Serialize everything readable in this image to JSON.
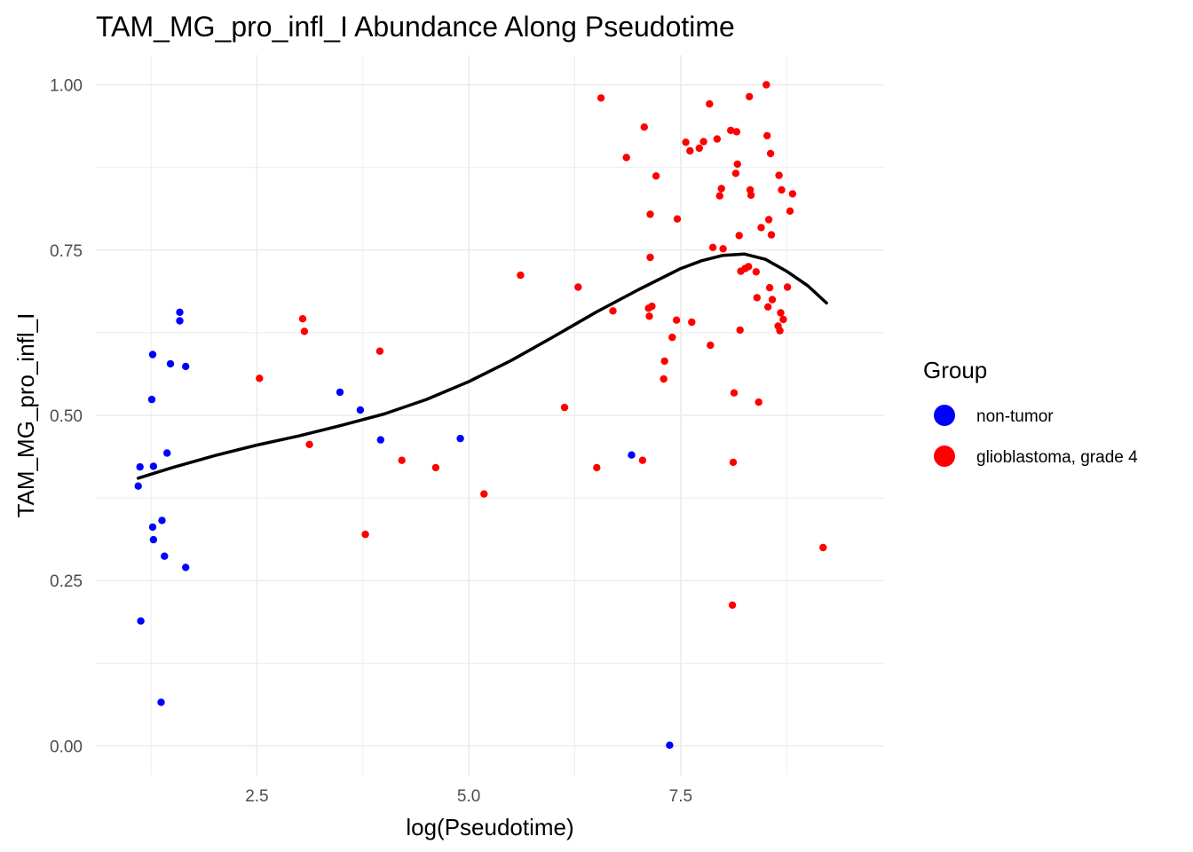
{
  "chart_data": {
    "type": "scatter",
    "title": "TAM_MG_pro_infl_I Abundance Along Pseudotime",
    "xlabel": "log(Pseudotime)",
    "ylabel": "TAM_MG_pro_infl_I",
    "xlim": [
      0.6,
      9.9
    ],
    "ylim": [
      -0.045,
      1.045
    ],
    "x_ticks": [
      2.5,
      5.0,
      7.5
    ],
    "x_tick_labels": [
      "2.5",
      "5.0",
      "7.5"
    ],
    "y_ticks": [
      0.0,
      0.25,
      0.5,
      0.75,
      1.0
    ],
    "y_tick_labels": [
      "0.00",
      "0.25",
      "0.50",
      "0.75",
      "1.00"
    ],
    "grid": true,
    "legend": {
      "title": "Group",
      "position": "right"
    },
    "series": [
      {
        "name": "non-tumor",
        "color": "#0000ff",
        "points": [
          [
            1.12,
            0.422
          ],
          [
            1.1,
            0.393
          ],
          [
            1.27,
            0.592
          ],
          [
            1.26,
            0.524
          ],
          [
            1.28,
            0.423
          ],
          [
            1.27,
            0.331
          ],
          [
            1.28,
            0.312
          ],
          [
            1.38,
            0.341
          ],
          [
            1.44,
            0.443
          ],
          [
            1.41,
            0.287
          ],
          [
            1.48,
            0.578
          ],
          [
            1.59,
            0.656
          ],
          [
            1.59,
            0.643
          ],
          [
            1.66,
            0.574
          ],
          [
            1.66,
            0.27
          ],
          [
            1.13,
            0.189
          ],
          [
            1.37,
            0.066
          ],
          [
            3.48,
            0.535
          ],
          [
            3.72,
            0.508
          ],
          [
            3.96,
            0.463
          ],
          [
            4.9,
            0.465
          ],
          [
            6.92,
            0.44
          ],
          [
            7.37,
            0.001
          ]
        ]
      },
      {
        "name": "glioblastoma, grade 4",
        "color": "#ff0000",
        "points": [
          [
            2.53,
            0.556
          ],
          [
            3.04,
            0.646
          ],
          [
            3.06,
            0.627
          ],
          [
            3.12,
            0.456
          ],
          [
            3.78,
            0.32
          ],
          [
            3.95,
            0.597
          ],
          [
            4.21,
            0.432
          ],
          [
            4.61,
            0.421
          ],
          [
            5.18,
            0.381
          ],
          [
            5.61,
            0.712
          ],
          [
            6.13,
            0.512
          ],
          [
            6.29,
            0.694
          ],
          [
            6.51,
            0.421
          ],
          [
            6.56,
            0.98
          ],
          [
            6.7,
            0.658
          ],
          [
            6.86,
            0.89
          ],
          [
            7.05,
            0.432
          ],
          [
            7.07,
            0.936
          ],
          [
            7.12,
            0.662
          ],
          [
            7.13,
            0.65
          ],
          [
            7.14,
            0.804
          ],
          [
            7.14,
            0.739
          ],
          [
            7.16,
            0.665
          ],
          [
            7.21,
            0.862
          ],
          [
            7.3,
            0.555
          ],
          [
            7.31,
            0.582
          ],
          [
            7.4,
            0.618
          ],
          [
            7.45,
            0.644
          ],
          [
            7.46,
            0.797
          ],
          [
            7.56,
            0.913
          ],
          [
            7.61,
            0.9
          ],
          [
            7.63,
            0.641
          ],
          [
            7.72,
            0.904
          ],
          [
            7.77,
            0.914
          ],
          [
            7.84,
            0.971
          ],
          [
            7.85,
            0.606
          ],
          [
            7.88,
            0.754
          ],
          [
            7.93,
            0.918
          ],
          [
            7.96,
            0.832
          ],
          [
            7.98,
            0.843
          ],
          [
            8.0,
            0.752
          ],
          [
            8.09,
            0.931
          ],
          [
            8.12,
            0.429
          ],
          [
            8.13,
            0.534
          ],
          [
            8.15,
            0.866
          ],
          [
            8.16,
            0.929
          ],
          [
            8.17,
            0.88
          ],
          [
            8.19,
            0.772
          ],
          [
            8.2,
            0.629
          ],
          [
            8.21,
            0.718
          ],
          [
            8.26,
            0.722
          ],
          [
            8.3,
            0.725
          ],
          [
            8.31,
            0.982
          ],
          [
            8.32,
            0.841
          ],
          [
            8.33,
            0.833
          ],
          [
            8.39,
            0.717
          ],
          [
            8.4,
            0.678
          ],
          [
            8.42,
            0.52
          ],
          [
            8.45,
            0.784
          ],
          [
            8.51,
            1.0
          ],
          [
            8.52,
            0.923
          ],
          [
            8.53,
            0.664
          ],
          [
            8.54,
            0.796
          ],
          [
            8.55,
            0.693
          ],
          [
            8.56,
            0.896
          ],
          [
            8.57,
            0.773
          ],
          [
            8.58,
            0.675
          ],
          [
            8.65,
            0.635
          ],
          [
            8.66,
            0.863
          ],
          [
            8.67,
            0.628
          ],
          [
            8.68,
            0.655
          ],
          [
            8.69,
            0.841
          ],
          [
            8.71,
            0.645
          ],
          [
            8.76,
            0.694
          ],
          [
            8.79,
            0.809
          ],
          [
            8.82,
            0.835
          ],
          [
            8.11,
            0.213
          ],
          [
            9.18,
            0.3
          ]
        ]
      }
    ],
    "smooth": {
      "color": "#000000",
      "points": [
        [
          1.1,
          0.405
        ],
        [
          1.5,
          0.421
        ],
        [
          2.0,
          0.439
        ],
        [
          2.5,
          0.455
        ],
        [
          3.0,
          0.469
        ],
        [
          3.5,
          0.485
        ],
        [
          4.0,
          0.502
        ],
        [
          4.5,
          0.524
        ],
        [
          5.0,
          0.551
        ],
        [
          5.5,
          0.583
        ],
        [
          6.0,
          0.619
        ],
        [
          6.5,
          0.656
        ],
        [
          7.0,
          0.69
        ],
        [
          7.5,
          0.722
        ],
        [
          7.75,
          0.734
        ],
        [
          8.0,
          0.742
        ],
        [
          8.25,
          0.744
        ],
        [
          8.5,
          0.736
        ],
        [
          8.75,
          0.718
        ],
        [
          9.0,
          0.696
        ],
        [
          9.22,
          0.67
        ]
      ]
    }
  }
}
